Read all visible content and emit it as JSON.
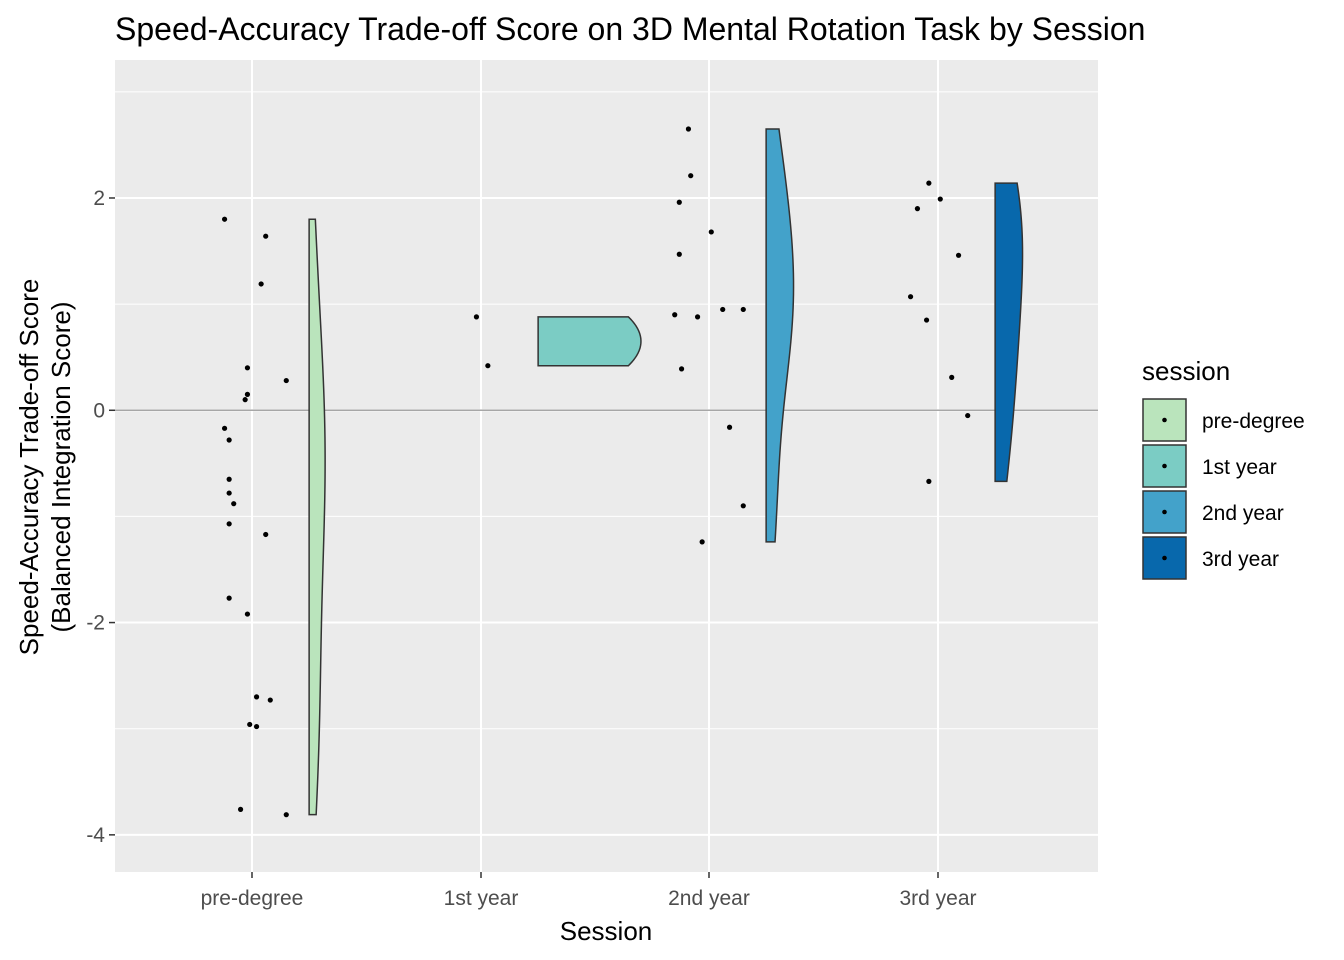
{
  "chart_data": {
    "type": "raincloud",
    "title": "Speed-Accuracy Trade-off Score on 3D Mental Rotation Task by Session",
    "xlabel": "Session",
    "ylabel": [
      "Speed-Accuracy Trade-off Score",
      "(Balanced Integration Score)"
    ],
    "ylim": [
      -4.35,
      3.3
    ],
    "yticks": [
      -4,
      -2,
      0,
      2
    ],
    "yticklabels": [
      "-4",
      "-2",
      "0",
      "2"
    ],
    "categories": [
      "pre-degree",
      "1st year",
      "2nd year",
      "3rd year"
    ],
    "reference_line": 0,
    "grid": true,
    "legend": {
      "title": "session",
      "position": "right",
      "entries": [
        "pre-degree",
        "1st year",
        "2nd year",
        "3rd year"
      ]
    },
    "colors": [
      "#bae4bc",
      "#7bccc4",
      "#43a2ca",
      "#0868ac"
    ],
    "series": [
      {
        "name": "pre-degree",
        "points": [
          {
            "j": -0.12,
            "y": 1.8
          },
          {
            "j": 0.06,
            "y": 1.64
          },
          {
            "j": 0.04,
            "y": 1.19
          },
          {
            "j": 0.15,
            "y": 0.28
          },
          {
            "j": -0.02,
            "y": 0.4
          },
          {
            "j": -0.02,
            "y": 0.15
          },
          {
            "j": -0.03,
            "y": 0.1
          },
          {
            "j": -0.12,
            "y": -0.17
          },
          {
            "j": -0.1,
            "y": -0.28
          },
          {
            "j": -0.1,
            "y": -0.65
          },
          {
            "j": -0.1,
            "y": -0.78
          },
          {
            "j": -0.08,
            "y": -0.88
          },
          {
            "j": -0.1,
            "y": -1.07
          },
          {
            "j": 0.06,
            "y": -1.17
          },
          {
            "j": -0.1,
            "y": -1.77
          },
          {
            "j": -0.02,
            "y": -1.92
          },
          {
            "j": 0.02,
            "y": -2.7
          },
          {
            "j": 0.08,
            "y": -2.73
          },
          {
            "j": -0.01,
            "y": -2.96
          },
          {
            "j": 0.02,
            "y": -2.98
          },
          {
            "j": -0.05,
            "y": -3.76
          },
          {
            "j": 0.15,
            "y": -3.81
          }
        ],
        "violin_max_halfwidth": 0.07
      },
      {
        "name": "1st year",
        "points": [
          {
            "j": -0.02,
            "y": 0.88
          },
          {
            "j": 0.03,
            "y": 0.42
          }
        ],
        "violin_max_halfwidth": 0.45
      },
      {
        "name": "2nd year",
        "points": [
          {
            "j": -0.09,
            "y": 2.65
          },
          {
            "j": -0.08,
            "y": 2.21
          },
          {
            "j": -0.13,
            "y": 1.96
          },
          {
            "j": 0.01,
            "y": 1.68
          },
          {
            "j": -0.13,
            "y": 1.47
          },
          {
            "j": 0.06,
            "y": 0.95
          },
          {
            "j": 0.15,
            "y": 0.95
          },
          {
            "j": -0.15,
            "y": 0.9
          },
          {
            "j": -0.05,
            "y": 0.88
          },
          {
            "j": -0.12,
            "y": 0.39
          },
          {
            "j": 0.09,
            "y": -0.16
          },
          {
            "j": 0.15,
            "y": -0.9
          },
          {
            "j": -0.03,
            "y": -1.24
          }
        ],
        "violin_max_halfwidth": 0.12
      },
      {
        "name": "3rd year",
        "points": [
          {
            "j": -0.04,
            "y": 2.14
          },
          {
            "j": 0.01,
            "y": 1.99
          },
          {
            "j": -0.09,
            "y": 1.9
          },
          {
            "j": 0.09,
            "y": 1.46
          },
          {
            "j": -0.12,
            "y": 1.07
          },
          {
            "j": -0.05,
            "y": 0.85
          },
          {
            "j": 0.06,
            "y": 0.31
          },
          {
            "j": 0.13,
            "y": -0.05
          },
          {
            "j": -0.04,
            "y": -0.67
          }
        ],
        "violin_max_halfwidth": 0.12
      }
    ]
  }
}
